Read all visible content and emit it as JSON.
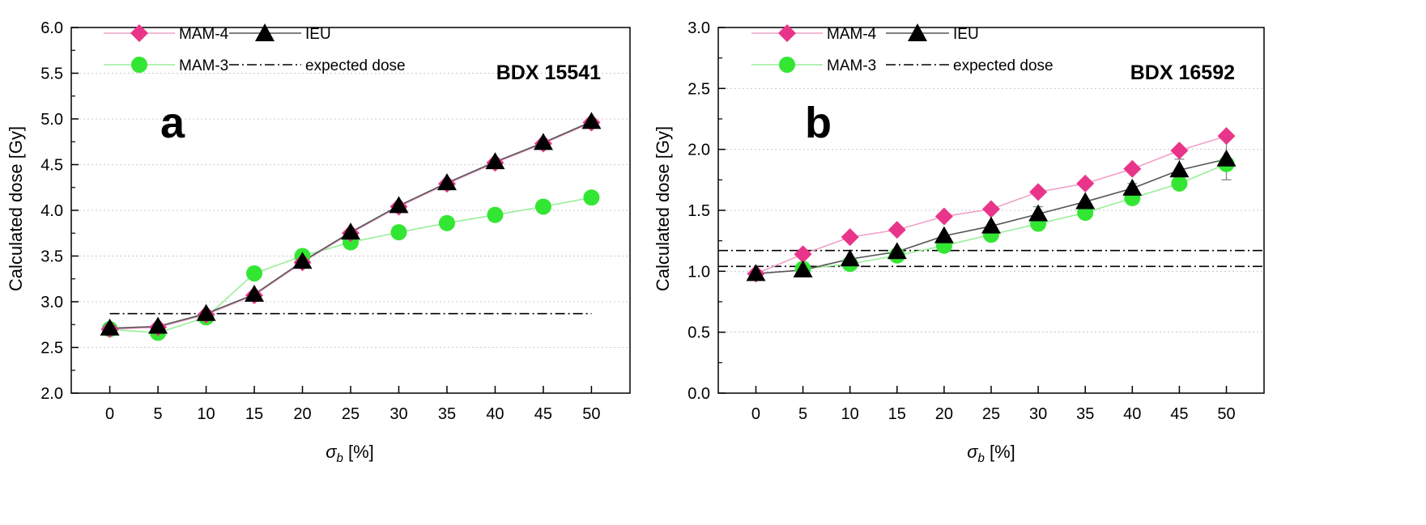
{
  "chart_data": [
    {
      "type": "line",
      "panel": "a",
      "sample": "BDX 15541",
      "xlabel": "σb [%]",
      "xlabel_symbol": "σ",
      "xlabel_subscript": "b",
      "xlabel_unit": " [%]",
      "ylabel": "Calculated dose [Gy]",
      "xlim": [
        -4,
        54
      ],
      "ylim": [
        2.0,
        6.0
      ],
      "x": [
        0,
        5,
        10,
        15,
        20,
        25,
        30,
        35,
        40,
        45,
        50
      ],
      "x_ticks": [
        "0",
        "5",
        "10",
        "15",
        "20",
        "25",
        "30",
        "35",
        "40",
        "45",
        "50"
      ],
      "y_ticks": [
        "2.0",
        "2.5",
        "3.0",
        "3.5",
        "4.0",
        "4.5",
        "5.0",
        "5.5",
        "6.0"
      ],
      "grid": "horizontal dotted",
      "series": [
        {
          "name": "MAM-4",
          "marker": "diamond",
          "color": "#e8358a",
          "line_color": "#f0a0c8",
          "values": [
            2.7,
            2.72,
            2.86,
            3.07,
            3.43,
            3.75,
            4.04,
            4.29,
            4.52,
            4.73,
            4.96
          ]
        },
        {
          "name": "IEU",
          "marker": "triangle",
          "color": "#000000",
          "line_color": "#555555",
          "values": [
            2.71,
            2.73,
            2.87,
            3.08,
            3.44,
            3.76,
            4.05,
            4.3,
            4.53,
            4.74,
            4.97
          ]
        },
        {
          "name": "MAM-3",
          "marker": "circle",
          "color": "#33e633",
          "line_color": "#99ee99",
          "values": [
            2.7,
            2.66,
            2.83,
            3.31,
            3.5,
            3.65,
            3.76,
            3.86,
            3.95,
            4.04,
            4.14
          ]
        }
      ],
      "expected_dose": {
        "name": "expected dose",
        "values": [
          2.87
        ],
        "x_range": [
          0,
          50
        ]
      }
    },
    {
      "type": "line",
      "panel": "b",
      "sample": "BDX 16592",
      "xlabel": "σb [%]",
      "xlabel_symbol": "σ",
      "xlabel_subscript": "b",
      "xlabel_unit": " [%]",
      "ylabel": "Calculated dose [Gy]",
      "xlim": [
        -4,
        54
      ],
      "ylim": [
        0.0,
        3.0
      ],
      "x": [
        0,
        5,
        10,
        15,
        20,
        25,
        30,
        35,
        40,
        45,
        50
      ],
      "x_ticks": [
        "0",
        "5",
        "10",
        "15",
        "20",
        "25",
        "30",
        "35",
        "40",
        "45",
        "50"
      ],
      "y_ticks": [
        "0.0",
        "0.5",
        "1.0",
        "1.5",
        "2.0",
        "2.5",
        "3.0"
      ],
      "grid": "horizontal dotted",
      "series": [
        {
          "name": "MAM-4",
          "marker": "diamond",
          "color": "#e8358a",
          "line_color": "#f0a0c8",
          "values": [
            0.98,
            1.14,
            1.28,
            1.34,
            1.45,
            1.51,
            1.65,
            1.72,
            1.84,
            1.99,
            2.11
          ]
        },
        {
          "name": "IEU",
          "marker": "triangle",
          "color": "#000000",
          "line_color": "#555555",
          "values": [
            0.98,
            1.01,
            1.1,
            1.16,
            1.29,
            1.37,
            1.47,
            1.57,
            1.68,
            1.83,
            1.92
          ],
          "error": [
            0,
            0,
            0,
            0,
            0,
            0,
            0.06,
            0,
            0.04,
            0.09,
            0.17
          ]
        },
        {
          "name": "MAM-3",
          "marker": "circle",
          "color": "#33e633",
          "line_color": "#99ee99",
          "values": [
            null,
            1.02,
            1.06,
            1.13,
            1.21,
            1.3,
            1.39,
            1.48,
            1.6,
            1.72,
            1.88
          ]
        }
      ],
      "expected_dose": {
        "name": "expected dose",
        "values": [
          1.17,
          1.04
        ],
        "x_range": [
          -4,
          54
        ]
      }
    }
  ]
}
